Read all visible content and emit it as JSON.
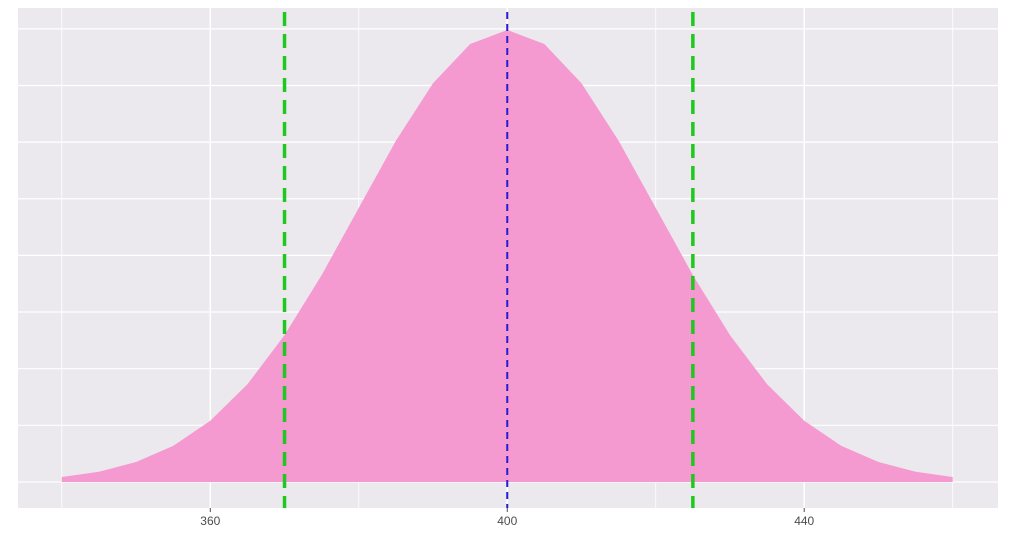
{
  "chart_data": {
    "type": "area",
    "x": [
      340,
      345,
      350,
      355,
      360,
      365,
      370,
      375,
      380,
      385,
      390,
      395,
      400,
      405,
      410,
      415,
      420,
      425,
      430,
      435,
      440,
      445,
      450,
      455,
      460
    ],
    "values": [
      0.00022,
      0.00045,
      0.00088,
      0.00159,
      0.0027,
      0.00431,
      0.00648,
      0.00913,
      0.0121,
      0.01506,
      0.0176,
      0.01933,
      0.01995,
      0.01933,
      0.0176,
      0.01506,
      0.0121,
      0.00913,
      0.00648,
      0.00431,
      0.0027,
      0.00159,
      0.00088,
      0.00045,
      0.00022
    ],
    "color": "#f49ad0",
    "xlim": [
      334.1,
      466.1
    ],
    "xticks": [
      360,
      400,
      440
    ],
    "xminor": [
      340,
      380,
      420,
      460
    ],
    "ylim": [
      -0.00115,
      0.02092
    ],
    "yticks": [
      0,
      0.0025,
      0.005,
      0.0075,
      0.01,
      0.0125,
      0.015,
      0.0175,
      0.02
    ],
    "grid": true,
    "vlines": [
      {
        "x": 370,
        "color": "#1ec81e"
      },
      {
        "x": 400,
        "color": "#2a1ad0"
      },
      {
        "x": 425,
        "color": "#1ec81e"
      }
    ]
  }
}
